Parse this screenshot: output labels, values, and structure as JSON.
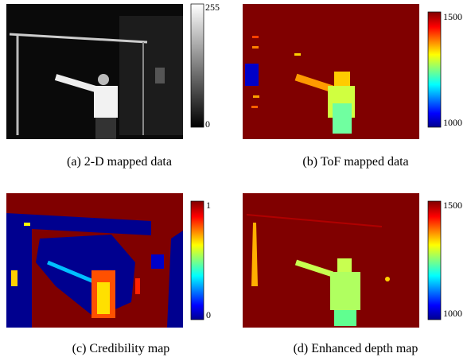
{
  "panels": [
    {
      "caption": "(a) 2-D mapped data",
      "colorbar": {
        "max": 255,
        "min": 0
      }
    },
    {
      "caption": "(b) ToF mapped data",
      "colorbar": {
        "max": 1500,
        "min": 1000
      }
    },
    {
      "caption": "(c) Credibility map",
      "colorbar": {
        "max": 1,
        "min": 0
      }
    },
    {
      "caption": "(d) Enhanced depth map",
      "colorbar": {
        "max": 1500,
        "min": 1000
      }
    }
  ]
}
